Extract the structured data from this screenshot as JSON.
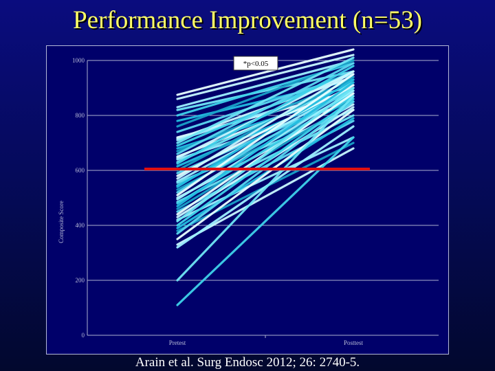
{
  "slide": {
    "title": "Performance Improvement (n=53)",
    "citation": "Arain et al. Surg Endosc 2012; 26: 2740-5."
  },
  "colors": {
    "background": "#06087a",
    "plot_background": "#00006a",
    "title": "#ffff66",
    "threshold": "#e01010",
    "line_palette": [
      "#e8ffff",
      "#c8f8ff",
      "#9df1ff",
      "#6fe6f5",
      "#3fd2ea",
      "#22bde0",
      "#1aa3c8",
      "#5ad7f0"
    ]
  },
  "chart_data": {
    "type": "line",
    "annotation": "*p<0.05",
    "categories": [
      "Pretest",
      "Posttest"
    ],
    "xlabel": "",
    "ylabel": "Composite Score",
    "ylim": [
      0,
      1000
    ],
    "yticks": [
      "0",
      "200",
      "400",
      "600",
      "800",
      "1000"
    ],
    "grid": true,
    "threshold": 605,
    "pairs": [
      [
        875,
        1040
      ],
      [
        860,
        1020
      ],
      [
        830,
        1000
      ],
      [
        820,
        960
      ],
      [
        800,
        990
      ],
      [
        780,
        930
      ],
      [
        760,
        1000
      ],
      [
        740,
        950
      ],
      [
        720,
        890
      ],
      [
        715,
        940
      ],
      [
        710,
        910
      ],
      [
        700,
        1010
      ],
      [
        690,
        960
      ],
      [
        680,
        880
      ],
      [
        670,
        930
      ],
      [
        660,
        990
      ],
      [
        650,
        900
      ],
      [
        645,
        960
      ],
      [
        640,
        850
      ],
      [
        630,
        920
      ],
      [
        625,
        980
      ],
      [
        615,
        890
      ],
      [
        600,
        940
      ],
      [
        590,
        870
      ],
      [
        580,
        910
      ],
      [
        570,
        960
      ],
      [
        560,
        900
      ],
      [
        555,
        820
      ],
      [
        545,
        880
      ],
      [
        540,
        930
      ],
      [
        530,
        860
      ],
      [
        520,
        900
      ],
      [
        510,
        950
      ],
      [
        500,
        840
      ],
      [
        495,
        890
      ],
      [
        485,
        800
      ],
      [
        480,
        870
      ],
      [
        470,
        920
      ],
      [
        460,
        850
      ],
      [
        450,
        780
      ],
      [
        440,
        880
      ],
      [
        430,
        830
      ],
      [
        420,
        720
      ],
      [
        415,
        900
      ],
      [
        400,
        860
      ],
      [
        390,
        790
      ],
      [
        380,
        700
      ],
      [
        370,
        850
      ],
      [
        350,
        820
      ],
      [
        330,
        680
      ],
      [
        320,
        760
      ],
      [
        200,
        870
      ],
      [
        110,
        720
      ]
    ]
  }
}
